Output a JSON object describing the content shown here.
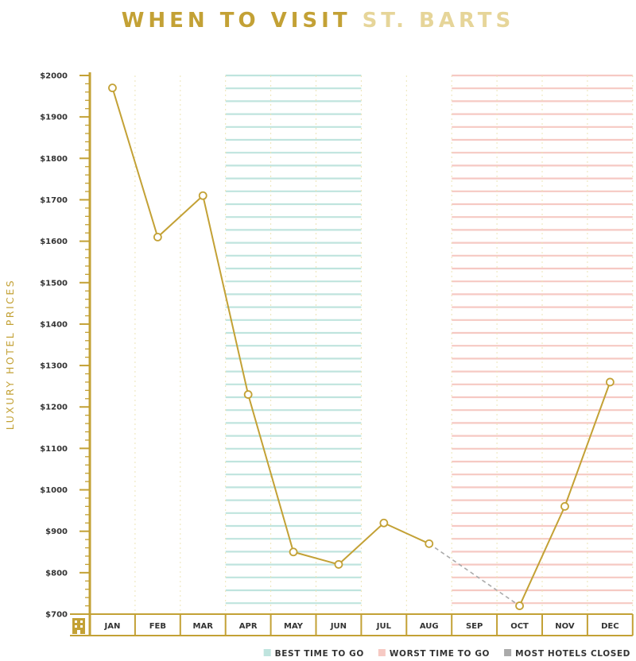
{
  "title": {
    "part1": "WHEN TO VISIT",
    "part2": "ST. BARTS"
  },
  "colors": {
    "gold": "#c3a135",
    "gold_light": "#e6d599",
    "best": "#bfe4de",
    "worst": "#f6c9c3",
    "closed": "#aaaaaa",
    "text": "#333333"
  },
  "chart_data": {
    "type": "line",
    "title": "WHEN TO VISIT ST. BARTS",
    "xlabel": "",
    "ylabel": "LUXURY HOTEL PRICES",
    "categories": [
      "JAN",
      "FEB",
      "MAR",
      "APR",
      "MAY",
      "JUN",
      "JUL",
      "AUG",
      "SEP",
      "OCT",
      "NOV",
      "DEC"
    ],
    "y_ticks": [
      "$2000",
      "$1900",
      "$1800",
      "$1700",
      "$1600",
      "$1500",
      "$1400",
      "$1300",
      "$1200",
      "$1100",
      "$1000",
      "$900",
      "$800",
      "$700"
    ],
    "ylim": [
      700,
      2000
    ],
    "series": [
      {
        "values": [
          1970,
          1610,
          1710,
          1230,
          850,
          820,
          920,
          870,
          null,
          720,
          960,
          1260
        ]
      }
    ],
    "bands": [
      {
        "label": "BEST TIME TO GO",
        "months": [
          "APR",
          "MAY",
          "JUN"
        ],
        "color": "#bfe4de"
      },
      {
        "label": "WORST TIME TO GO",
        "months": [
          "SEP",
          "OCT",
          "NOV",
          "DEC"
        ],
        "color": "#f6c9c3"
      }
    ],
    "closed_months": [
      "SEP"
    ],
    "legend": [
      {
        "label": "BEST TIME TO GO",
        "color": "#bfe4de"
      },
      {
        "label": "WORST TIME TO GO",
        "color": "#f6c9c3"
      },
      {
        "label": "MOST HOTELS CLOSED",
        "color": "#aaaaaa"
      }
    ],
    "legend_position": "bottom-right",
    "grid": "vertical-dotted"
  }
}
